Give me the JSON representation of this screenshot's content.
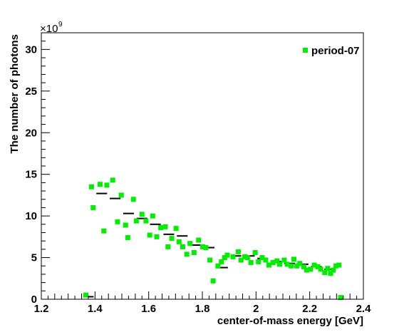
{
  "chart_data": {
    "type": "scatter",
    "title": "",
    "xlabel": "center-of-mass energy [GeV]",
    "ylabel": "The number of photons",
    "y_multiplier_label": "×10",
    "y_multiplier_exponent": "9",
    "xlim": [
      1.2,
      2.4
    ],
    "ylim": [
      0,
      32
    ],
    "x_ticks": [
      1.2,
      1.4,
      1.6,
      1.8,
      2.0,
      2.2,
      2.4
    ],
    "x_tick_labels": [
      "1.2",
      "1.4",
      "1.6",
      "1.8",
      "2",
      "2.2",
      "2.4"
    ],
    "y_ticks": [
      0,
      5,
      10,
      15,
      20,
      25,
      30
    ],
    "y_tick_labels": [
      "0",
      "5",
      "10",
      "15",
      "20",
      "25",
      "30"
    ],
    "grid": false,
    "legend_position": "top-right",
    "series": [
      {
        "name": "period-07",
        "color": "#00ee00",
        "marker": "square",
        "points": [
          [
            1.366,
            0.5
          ],
          [
            1.387,
            13.5
          ],
          [
            1.393,
            11.0
          ],
          [
            1.419,
            13.8
          ],
          [
            1.433,
            8.2
          ],
          [
            1.444,
            13.7
          ],
          [
            1.466,
            14.3
          ],
          [
            1.484,
            9.3
          ],
          [
            1.498,
            12.5
          ],
          [
            1.514,
            8.9
          ],
          [
            1.522,
            7.4
          ],
          [
            1.543,
            12.0
          ],
          [
            1.554,
            9.4
          ],
          [
            1.575,
            10.2
          ],
          [
            1.59,
            9.4
          ],
          [
            1.604,
            7.7
          ],
          [
            1.615,
            10.0
          ],
          [
            1.63,
            7.5
          ],
          [
            1.645,
            8.6
          ],
          [
            1.662,
            8.7
          ],
          [
            1.672,
            6.3
          ],
          [
            1.686,
            7.3
          ],
          [
            1.702,
            8.5
          ],
          [
            1.713,
            6.9
          ],
          [
            1.727,
            6.3
          ],
          [
            1.742,
            5.4
          ],
          [
            1.754,
            6.7
          ],
          [
            1.769,
            5.6
          ],
          [
            1.786,
            7.1
          ],
          [
            1.801,
            6.3
          ],
          [
            1.813,
            6.2
          ],
          [
            1.828,
            4.7
          ],
          [
            1.84,
            2.2
          ],
          [
            1.858,
            4.0
          ],
          [
            1.871,
            4.5
          ],
          [
            1.883,
            5.0
          ],
          [
            1.893,
            5.3
          ],
          [
            1.914,
            5.1
          ],
          [
            1.934,
            5.7
          ],
          [
            1.944,
            4.7
          ],
          [
            1.958,
            5.1
          ],
          [
            1.968,
            5.0
          ],
          [
            1.981,
            4.4
          ],
          [
            1.997,
            5.6
          ],
          [
            2.009,
            4.5
          ],
          [
            2.023,
            5.0
          ],
          [
            2.036,
            4.7
          ],
          [
            2.048,
            4.1
          ],
          [
            2.063,
            4.4
          ],
          [
            2.078,
            4.6
          ],
          [
            2.088,
            4.2
          ],
          [
            2.105,
            4.7
          ],
          [
            2.116,
            4.2
          ],
          [
            2.131,
            4.0
          ],
          [
            2.141,
            4.8
          ],
          [
            2.152,
            4.0
          ],
          [
            2.163,
            4.3
          ],
          [
            2.178,
            3.9
          ],
          [
            2.189,
            3.5
          ],
          [
            2.203,
            3.6
          ],
          [
            2.217,
            4.1
          ],
          [
            2.23,
            3.9
          ],
          [
            2.241,
            3.6
          ],
          [
            2.256,
            3.2
          ],
          [
            2.267,
            3.7
          ],
          [
            2.278,
            3.1
          ],
          [
            2.288,
            3.5
          ],
          [
            2.298,
            4.0
          ],
          [
            2.309,
            4.1
          ],
          [
            2.315,
            0.2
          ]
        ]
      },
      {
        "type": "step",
        "color": "#000000",
        "segments": [
          [
            1.362,
            1.395,
            0.3
          ],
          [
            1.405,
            1.445,
            12.7
          ],
          [
            1.455,
            1.495,
            12.1
          ],
          [
            1.505,
            1.545,
            10.3
          ],
          [
            1.555,
            1.595,
            9.7
          ],
          [
            1.605,
            1.645,
            9.0
          ],
          [
            1.655,
            1.695,
            7.8
          ],
          [
            1.705,
            1.745,
            7.6
          ],
          [
            1.755,
            1.795,
            6.5
          ],
          [
            1.805,
            1.845,
            6.2
          ],
          [
            1.855,
            1.895,
            3.8
          ],
          [
            1.905,
            1.945,
            5.2
          ],
          [
            1.955,
            1.995,
            5.2
          ],
          [
            2.005,
            2.045,
            4.9
          ],
          [
            2.055,
            2.095,
            4.5
          ],
          [
            2.105,
            2.145,
            4.3
          ],
          [
            2.155,
            2.195,
            4.2
          ],
          [
            2.205,
            2.245,
            3.9
          ],
          [
            2.255,
            2.295,
            3.6
          ]
        ]
      }
    ]
  }
}
